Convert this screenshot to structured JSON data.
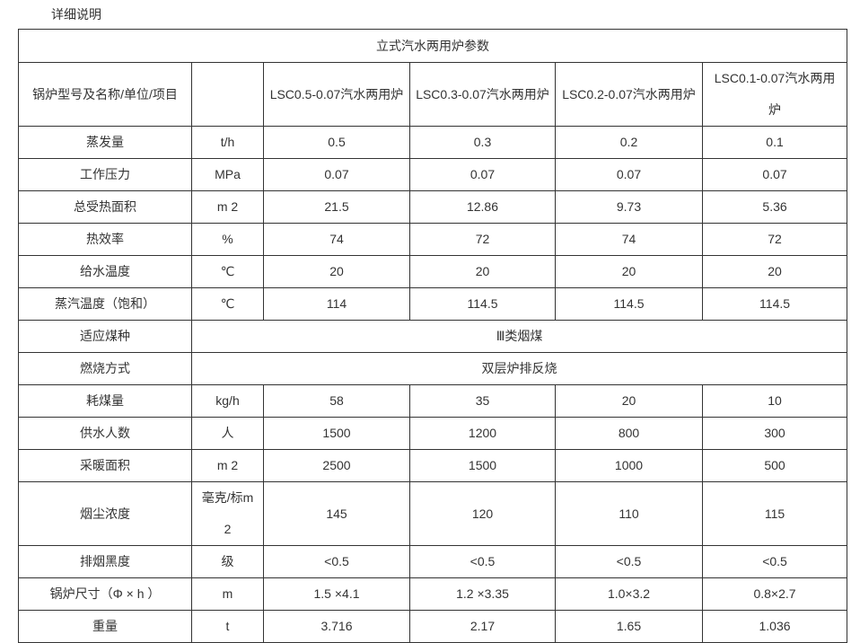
{
  "page": {
    "title": "详细说明"
  },
  "table": {
    "section_title": "立式汽水两用炉参数",
    "header": {
      "label": "锅炉型号及名称/单位/项目",
      "unit": "",
      "models": [
        "LSC0.5-0.07汽水两用炉",
        "LSC0.3-0.07汽水两用炉",
        "LSC0.2-0.07汽水两用炉",
        "LSC0.1-0.07汽水两用炉"
      ]
    },
    "rows": [
      {
        "label": "蒸发量",
        "unit": "t/h",
        "values": [
          "0.5",
          "0.3",
          "0.2",
          "0.1"
        ]
      },
      {
        "label": "工作压力",
        "unit": "MPa",
        "values": [
          "0.07",
          "0.07",
          "0.07",
          "0.07"
        ]
      },
      {
        "label": "总受热面积",
        "unit": "m 2",
        "values": [
          "21.5",
          "12.86",
          "9.73",
          "5.36"
        ]
      },
      {
        "label": "热效率",
        "unit": "%",
        "values": [
          "74",
          "72",
          "74",
          "72"
        ]
      },
      {
        "label": "给水温度",
        "unit": "℃",
        "values": [
          "20",
          "20",
          "20",
          "20"
        ]
      },
      {
        "label": "蒸汽温度（饱和）",
        "unit": "℃",
        "values": [
          "114",
          "114.5",
          "114.5",
          "114.5"
        ]
      },
      {
        "label": "适应煤种",
        "merged": "Ⅲ类烟煤"
      },
      {
        "label": "燃烧方式",
        "merged": "双层炉排反烧"
      },
      {
        "label": "耗煤量",
        "unit": "kg/h",
        "values": [
          "58",
          "35",
          "20",
          "10"
        ]
      },
      {
        "label": "供水人数",
        "unit": "人",
        "values": [
          "1500",
          "1200",
          "800",
          "300"
        ]
      },
      {
        "label": "采暖面积",
        "unit": "m 2",
        "values": [
          "2500",
          "1500",
          "1000",
          "500"
        ]
      },
      {
        "label": "烟尘浓度",
        "unit": "毫克/标m 2",
        "values": [
          "145",
          "120",
          "110",
          "115"
        ]
      },
      {
        "label": "排烟黑度",
        "unit": "级",
        "values": [
          "<0.5",
          "<0.5",
          "<0.5",
          "<0.5"
        ]
      },
      {
        "label": "锅炉尺寸（Φ × h ）",
        "unit": "m",
        "values": [
          "1.5 ×4.1",
          "1.2 ×3.35",
          "1.0×3.2",
          "0.8×2.7"
        ]
      },
      {
        "label": "重量",
        "unit": "t",
        "values": [
          "3.716",
          "2.17",
          "1.65",
          "1.036"
        ]
      }
    ],
    "colors": {
      "label_bg": "#f2f2f2",
      "cell_bg": "#ffffff",
      "border": "#333333",
      "text": "#333333"
    }
  }
}
